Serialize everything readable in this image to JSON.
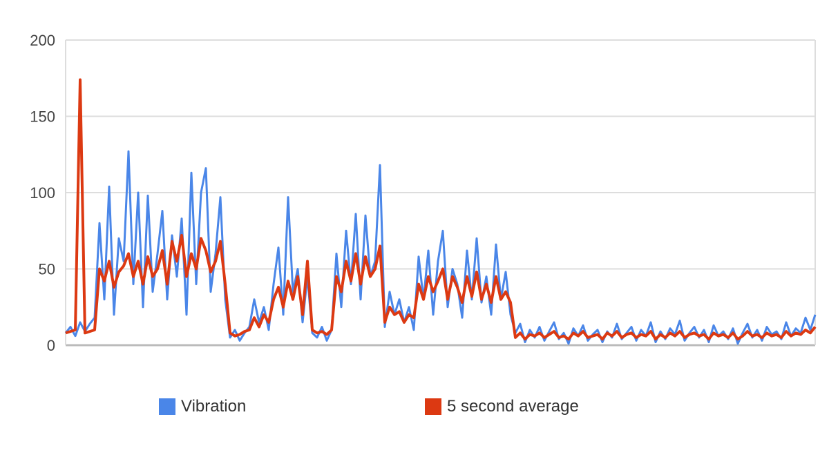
{
  "chart_data": {
    "type": "line",
    "title": "",
    "xlabel": "",
    "ylabel": "",
    "ylim": [
      0,
      200
    ],
    "yticks": [
      "0",
      "50",
      "100",
      "150",
      "200"
    ],
    "grid": true,
    "legend_position": "bottom",
    "series": [
      {
        "name": "Vibration",
        "color": "#4a86e8",
        "values": [
          8,
          12,
          6,
          15,
          9,
          14,
          18,
          80,
          30,
          104,
          20,
          70,
          55,
          127,
          40,
          100,
          25,
          98,
          35,
          60,
          88,
          30,
          72,
          45,
          83,
          20,
          113,
          40,
          100,
          116,
          35,
          60,
          97,
          30,
          5,
          10,
          3,
          8,
          12,
          30,
          15,
          25,
          10,
          40,
          64,
          20,
          97,
          35,
          50,
          15,
          45,
          8,
          5,
          12,
          3,
          10,
          60,
          25,
          75,
          40,
          86,
          30,
          85,
          45,
          55,
          118,
          12,
          35,
          20,
          30,
          15,
          25,
          10,
          58,
          30,
          62,
          20,
          55,
          75,
          25,
          50,
          40,
          18,
          62,
          30,
          70,
          28,
          45,
          20,
          66,
          30,
          48,
          20,
          8,
          14,
          2,
          10,
          5,
          12,
          3,
          9,
          15,
          4,
          8,
          1,
          11,
          6,
          13,
          3,
          7,
          10,
          2,
          9,
          5,
          14,
          4,
          8,
          12,
          3,
          10,
          6,
          15,
          2,
          9,
          4,
          11,
          7,
          16,
          3,
          8,
          12,
          5,
          10,
          2,
          13,
          6,
          9,
          4,
          11,
          1,
          8,
          14,
          5,
          10,
          3,
          12,
          7,
          9,
          4,
          15,
          6,
          11,
          8,
          18,
          10,
          20
        ]
      },
      {
        "name": "5 second average",
        "color": "#dc3912",
        "values": [
          8,
          9,
          10,
          174,
          8,
          9,
          10,
          50,
          42,
          55,
          38,
          48,
          52,
          60,
          45,
          55,
          40,
          58,
          45,
          50,
          62,
          40,
          68,
          55,
          72,
          45,
          60,
          50,
          70,
          62,
          48,
          55,
          68,
          40,
          8,
          6,
          7,
          9,
          10,
          18,
          12,
          20,
          15,
          30,
          38,
          25,
          42,
          30,
          45,
          20,
          55,
          10,
          8,
          9,
          7,
          10,
          45,
          35,
          55,
          42,
          60,
          40,
          58,
          45,
          50,
          65,
          15,
          25,
          20,
          22,
          15,
          20,
          18,
          40,
          30,
          45,
          35,
          42,
          50,
          30,
          45,
          38,
          28,
          45,
          32,
          48,
          30,
          40,
          28,
          45,
          30,
          35,
          28,
          5,
          8,
          4,
          7,
          6,
          8,
          5,
          7,
          9,
          5,
          6,
          4,
          8,
          6,
          9,
          5,
          6,
          7,
          4,
          8,
          6,
          9,
          5,
          7,
          8,
          5,
          7,
          6,
          9,
          4,
          7,
          5,
          8,
          6,
          9,
          5,
          7,
          8,
          6,
          7,
          4,
          8,
          6,
          7,
          5,
          8,
          4,
          6,
          9,
          6,
          7,
          5,
          8,
          6,
          7,
          5,
          9,
          6,
          8,
          7,
          10,
          8,
          12
        ]
      }
    ]
  }
}
